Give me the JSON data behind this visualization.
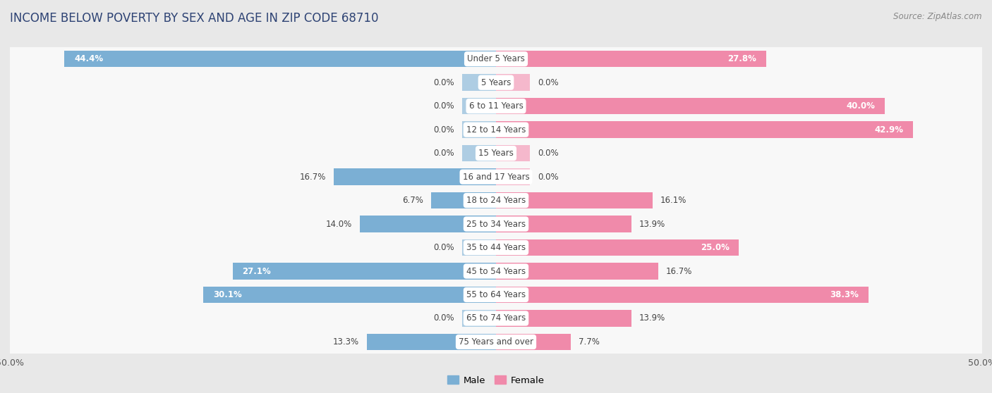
{
  "title": "INCOME BELOW POVERTY BY SEX AND AGE IN ZIP CODE 68710",
  "source": "Source: ZipAtlas.com",
  "categories": [
    "Under 5 Years",
    "5 Years",
    "6 to 11 Years",
    "12 to 14 Years",
    "15 Years",
    "16 and 17 Years",
    "18 to 24 Years",
    "25 to 34 Years",
    "35 to 44 Years",
    "45 to 54 Years",
    "55 to 64 Years",
    "65 to 74 Years",
    "75 Years and over"
  ],
  "male_values": [
    44.4,
    0.0,
    0.0,
    0.0,
    0.0,
    16.7,
    6.7,
    14.0,
    0.0,
    27.1,
    30.1,
    0.0,
    13.3
  ],
  "female_values": [
    27.8,
    0.0,
    40.0,
    42.9,
    0.0,
    0.0,
    16.1,
    13.9,
    25.0,
    16.7,
    38.3,
    13.9,
    7.7
  ],
  "male_color": "#7bafd4",
  "female_color": "#f08aaa",
  "male_color_light": "#aecde3",
  "female_color_light": "#f5b8cc",
  "male_label": "Male",
  "female_label": "Female",
  "xlim": 50.0,
  "background_color": "#e8e8e8",
  "bar_background_color": "#f8f8f8",
  "title_fontsize": 12,
  "source_fontsize": 8.5,
  "label_fontsize": 8.5,
  "axis_fontsize": 9,
  "title_color": "#2e4374",
  "label_color_dark": "#444444",
  "label_color_white": "#ffffff"
}
